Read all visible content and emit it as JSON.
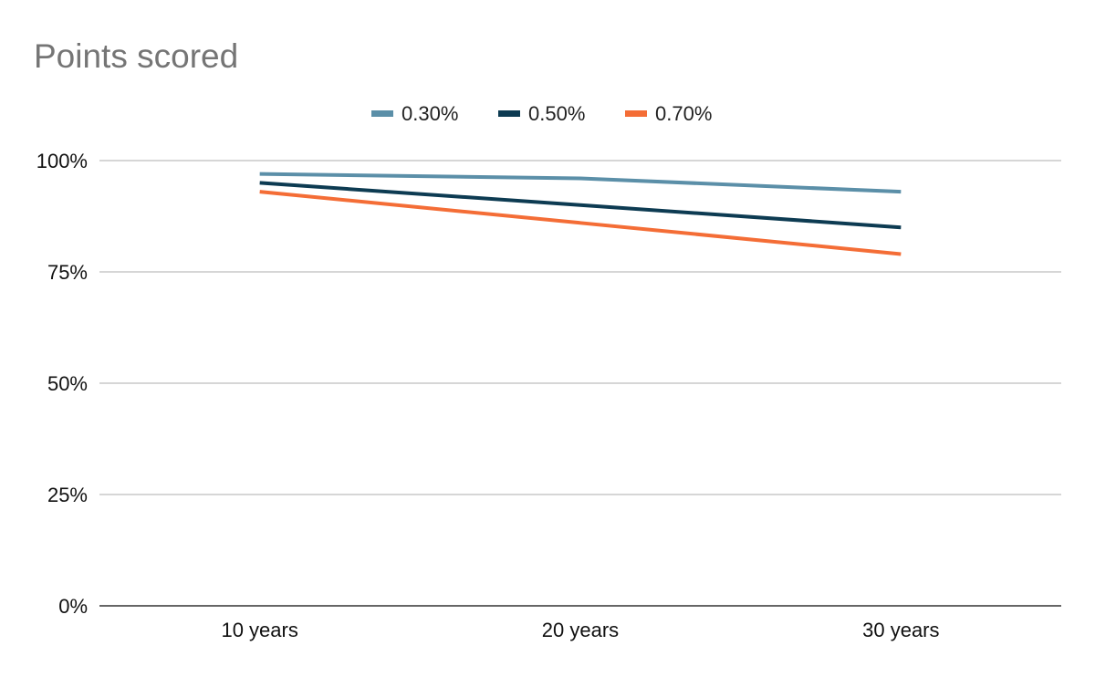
{
  "chart_data": {
    "type": "line",
    "title": "Points scored",
    "categories": [
      "10 years",
      "20 years",
      "30 years"
    ],
    "series": [
      {
        "name": "0.30%",
        "color": "#5b8fa8",
        "values": [
          97,
          96,
          93
        ]
      },
      {
        "name": "0.50%",
        "color": "#0d3b52",
        "values": [
          95,
          90,
          85
        ]
      },
      {
        "name": "0.70%",
        "color": "#f46d36",
        "values": [
          93,
          86,
          79
        ]
      }
    ],
    "yticks": [
      {
        "value": 0,
        "label": "0%"
      },
      {
        "value": 25,
        "label": "25%"
      },
      {
        "value": 50,
        "label": "50%"
      },
      {
        "value": 75,
        "label": "75%"
      },
      {
        "value": 100,
        "label": "100%"
      }
    ],
    "ylim": [
      0,
      100
    ],
    "grid": true,
    "legend_position": "top-center"
  }
}
